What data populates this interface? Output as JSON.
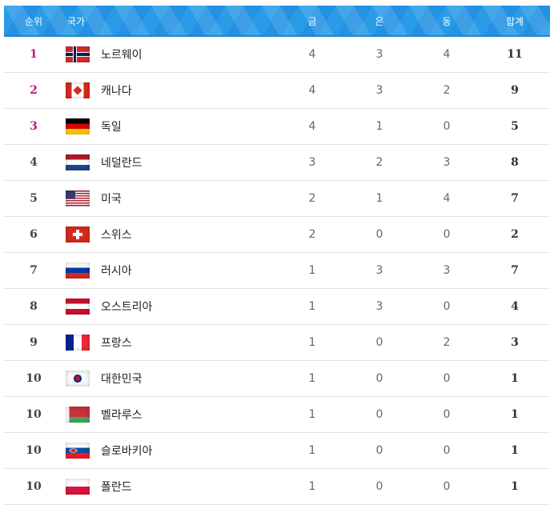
{
  "header": {
    "rank": "순위",
    "country": "국가",
    "gold": "금",
    "silver": "은",
    "bronze": "동",
    "total": "합계"
  },
  "colors": {
    "header_bg": "#2a9be6",
    "top_rank": "#c2187a"
  },
  "rows": [
    {
      "rank": "1",
      "country": "노르웨이",
      "flag": "norway",
      "gold": "4",
      "silver": "3",
      "bronze": "4",
      "total": "11"
    },
    {
      "rank": "2",
      "country": "캐나다",
      "flag": "canada",
      "gold": "4",
      "silver": "3",
      "bronze": "2",
      "total": "9"
    },
    {
      "rank": "3",
      "country": "독일",
      "flag": "germany",
      "gold": "4",
      "silver": "1",
      "bronze": "0",
      "total": "5"
    },
    {
      "rank": "4",
      "country": "네덜란드",
      "flag": "netherlands",
      "gold": "3",
      "silver": "2",
      "bronze": "3",
      "total": "8"
    },
    {
      "rank": "5",
      "country": "미국",
      "flag": "usa",
      "gold": "2",
      "silver": "1",
      "bronze": "4",
      "total": "7"
    },
    {
      "rank": "6",
      "country": "스위스",
      "flag": "switzerland",
      "gold": "2",
      "silver": "0",
      "bronze": "0",
      "total": "2"
    },
    {
      "rank": "7",
      "country": "러시아",
      "flag": "russia",
      "gold": "1",
      "silver": "3",
      "bronze": "3",
      "total": "7"
    },
    {
      "rank": "8",
      "country": "오스트리아",
      "flag": "austria",
      "gold": "1",
      "silver": "3",
      "bronze": "0",
      "total": "4"
    },
    {
      "rank": "9",
      "country": "프랑스",
      "flag": "france",
      "gold": "1",
      "silver": "0",
      "bronze": "2",
      "total": "3"
    },
    {
      "rank": "10",
      "country": "대한민국",
      "flag": "korea",
      "gold": "1",
      "silver": "0",
      "bronze": "0",
      "total": "1"
    },
    {
      "rank": "10",
      "country": "벨라루스",
      "flag": "belarus",
      "gold": "1",
      "silver": "0",
      "bronze": "0",
      "total": "1"
    },
    {
      "rank": "10",
      "country": "슬로바키아",
      "flag": "slovakia",
      "gold": "1",
      "silver": "0",
      "bronze": "0",
      "total": "1"
    },
    {
      "rank": "10",
      "country": "폴란드",
      "flag": "poland",
      "gold": "1",
      "silver": "0",
      "bronze": "0",
      "total": "1"
    }
  ]
}
